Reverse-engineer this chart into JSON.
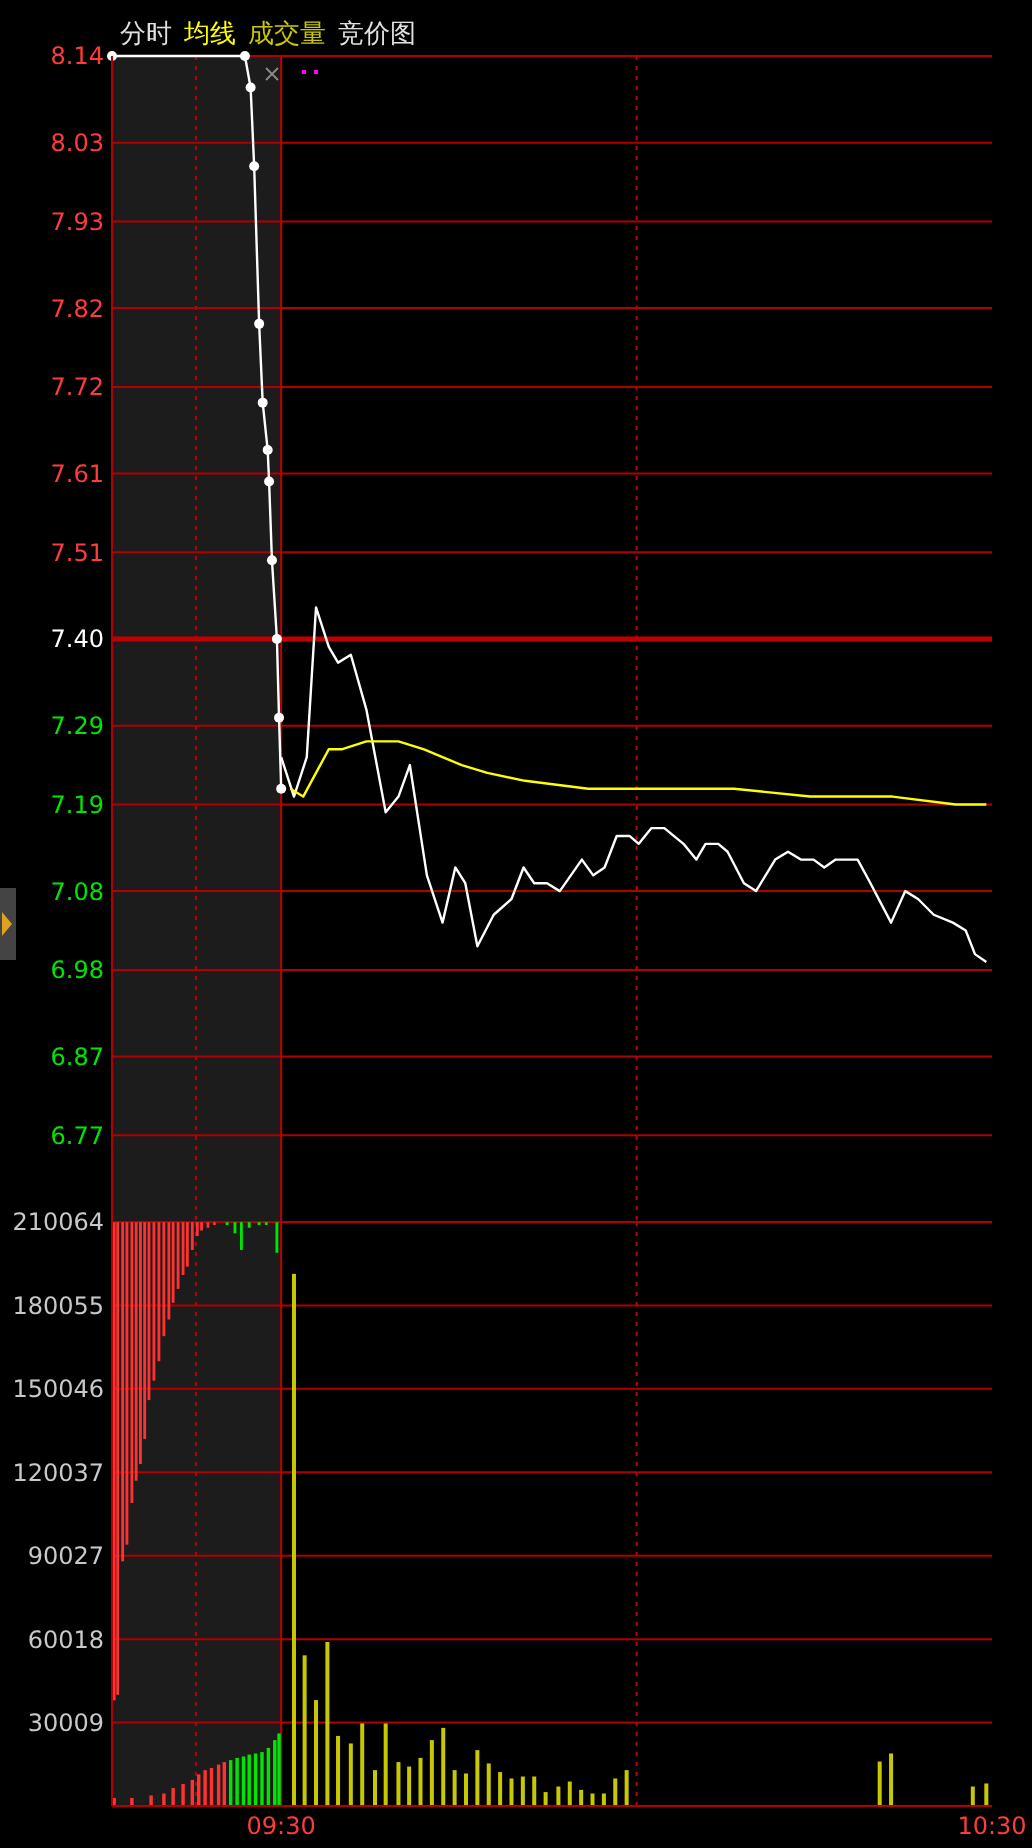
{
  "chart_data": [
    {
      "type": "line",
      "title": "分时",
      "legend": "top left",
      "tick_labels": "y",
      "grid": "y",
      "annotations": [
        "成交量",
        "竞价图"
      ],
      "xlim": [
        9.262,
        10.5
      ],
      "ylim": [
        6.66,
        8.14
      ],
      "yticks": [
        8.14,
        8.03,
        7.93,
        7.82,
        7.72,
        7.61,
        7.51,
        {
          "value": 7.4,
          "label": "7.40"
        },
        7.29,
        7.19,
        7.08,
        6.98,
        6.87,
        6.77
      ],
      "bands": [
        {
          "axis": "x",
          "from": 9.262,
          "to": 9.5,
          "color": "#1c1c1c"
        }
      ],
      "ref_lines": [
        {
          "axis": "y",
          "value": 7.4,
          "color": "#c00000",
          "line_style": "solid"
        },
        {
          "axis": "x",
          "value": 9.38,
          "color": "#c00000",
          "line_style": "dotted"
        },
        {
          "axis": "x",
          "value": 9.5,
          "color": "#c00000",
          "line_style": "solid"
        },
        {
          "axis": "x",
          "value": 10.0,
          "color": "#c00000",
          "line_style": "dotted"
        }
      ],
      "series": [
        {
          "color": "#ffffff",
          "marker": "circle",
          "x": [
            9.262,
            9.449,
            9.457,
            9.462,
            9.469,
            9.474,
            9.481,
            9.483,
            9.487,
            9.494,
            9.497,
            9.5
          ],
          "values": [
            8.14,
            8.14,
            8.1,
            8.0,
            7.8,
            7.7,
            7.64,
            7.6,
            7.5,
            7.4,
            7.3,
            7.21
          ]
        },
        {
          "color": "#ffffff",
          "x": [
            9.5,
            9.518,
            9.536,
            9.549,
            9.567,
            9.58,
            9.598,
            9.62,
            9.647,
            9.665,
            9.681,
            9.705,
            9.727,
            9.745,
            9.759,
            9.776,
            9.799,
            9.824,
            9.841,
            9.856,
            9.874,
            9.892,
            9.923,
            9.939,
            9.955,
            9.972,
            9.99,
            10.003,
            10.021,
            10.039,
            10.066,
            10.084,
            10.097,
            10.115,
            10.128,
            10.151,
            10.168,
            10.195,
            10.213,
            10.231,
            10.249,
            10.264,
            10.28,
            10.311,
            10.329,
            10.358,
            10.378,
            10.396,
            10.418,
            10.445,
            10.463,
            10.476,
            10.492
          ],
          "values": [
            7.25,
            7.2,
            7.25,
            7.44,
            7.39,
            7.37,
            7.38,
            7.31,
            7.18,
            7.2,
            7.24,
            7.1,
            7.04,
            7.11,
            7.09,
            7.01,
            7.05,
            7.07,
            7.11,
            7.09,
            7.09,
            7.08,
            7.12,
            7.1,
            7.11,
            7.15,
            7.15,
            7.14,
            7.16,
            7.16,
            7.14,
            7.12,
            7.14,
            7.14,
            7.13,
            7.09,
            7.08,
            7.12,
            7.13,
            7.12,
            7.12,
            7.11,
            7.12,
            7.12,
            7.09,
            7.04,
            7.08,
            7.07,
            7.05,
            7.04,
            7.03,
            7.0,
            6.99
          ]
        },
        {
          "name": "均线",
          "color": "#ffff00",
          "x": [
            9.513,
            9.531,
            9.549,
            9.567,
            9.585,
            9.62,
            9.638,
            9.665,
            9.701,
            9.727,
            9.754,
            9.79,
            9.843,
            9.932,
            10.021,
            10.137,
            10.244,
            10.342,
            10.36,
            10.449,
            10.492
          ],
          "values": [
            7.21,
            7.2,
            7.23,
            7.26,
            7.26,
            7.27,
            7.27,
            7.27,
            7.26,
            7.25,
            7.24,
            7.23,
            7.22,
            7.21,
            7.21,
            7.21,
            7.2,
            7.2,
            7.2,
            7.19,
            7.19
          ]
        }
      ]
    },
    {
      "type": "bar",
      "grid": "y",
      "xlim": [
        9.262,
        10.5
      ],
      "xticks": [
        {
          "value": 9.5,
          "label": "09:30"
        },
        {
          "value": 10.5,
          "label": "10:30"
        }
      ],
      "ylim": [
        0,
        210064
      ],
      "yticks": [
        30009,
        60018,
        90027,
        120037,
        150046,
        180055,
        210064
      ],
      "bands": [
        {
          "axis": "x",
          "from": 9.262,
          "to": 9.5,
          "color": "#1c1c1c"
        }
      ],
      "ref_lines": [
        {
          "axis": "x",
          "value": 9.38,
          "color": "#c00000",
          "line_style": "dotted"
        },
        {
          "axis": "x",
          "value": 9.5,
          "color": "#c00000",
          "line_style": "solid"
        },
        {
          "axis": "x",
          "value": 10.0,
          "color": "#c00000",
          "line_style": "dotted"
        }
      ],
      "series": [
        {
          "x": [
            9.265,
            9.27,
            9.277,
            9.283,
            9.29,
            9.296,
            9.302,
            9.308,
            9.314,
            9.321,
            9.328,
            9.335,
            9.342,
            9.348,
            9.355,
            9.362,
            9.368,
            9.375,
            9.382,
            9.388,
            9.397,
            9.406,
            9.424,
            9.435,
            9.444,
            9.455,
            9.469,
            9.479,
            9.494
          ],
          "base": [
            38000,
            40000,
            88000,
            94000,
            109000,
            117000,
            123000,
            132000,
            146000,
            153000,
            160000,
            169000,
            175000,
            181000,
            186000,
            191000,
            194000,
            200000,
            205000,
            207000,
            208000,
            209000,
            209000,
            206000,
            200000,
            208000,
            209000,
            209000,
            199000
          ],
          "values": [
            172000,
            170000,
            122000,
            116000,
            101000,
            93000,
            87000,
            78000,
            64000,
            57000,
            50000,
            41000,
            35000,
            29000,
            24000,
            19000,
            16000,
            10000,
            5000,
            3000,
            2000,
            1000,
            1000,
            4000,
            10000,
            2000,
            1000,
            1000,
            11000
          ],
          "colors": [
            "#ff3232",
            "#ff3232",
            "#ff3232",
            "#ff3232",
            "#ff3232",
            "#ff3232",
            "#ff3232",
            "#ff3232",
            "#ff3232",
            "#ff3232",
            "#ff3232",
            "#ff3232",
            "#ff3232",
            "#ff3232",
            "#ff3232",
            "#ff3232",
            "#ff3232",
            "#ff3232",
            "#ff3232",
            "#ff3232",
            "#ff3232",
            "#ff3232",
            "#00e600",
            "#00e600",
            "#00e600",
            "#00e600",
            "#00e600",
            "#00e600",
            "#00e600"
          ]
        },
        {
          "x": [
            9.265,
            9.29,
            9.317,
            9.335,
            9.348,
            9.362,
            9.375,
            9.384,
            9.393,
            9.402,
            9.412,
            9.42,
            9.429,
            9.438,
            9.447,
            9.455,
            9.464,
            9.473,
            9.482,
            9.491,
            9.497
          ],
          "values": [
            2900,
            2900,
            3800,
            4500,
            6500,
            7900,
            9400,
            11400,
            12900,
            13700,
            14900,
            15800,
            16500,
            17300,
            17800,
            18500,
            18900,
            19400,
            20900,
            23700,
            26100
          ],
          "colors": [
            "#ff3232",
            "#ff3232",
            "#ff3232",
            "#ff3232",
            "#ff3232",
            "#ff3232",
            "#ff3232",
            "#ff3232",
            "#ff3232",
            "#ff3232",
            "#ff3232",
            "#ff3232",
            "#00e600",
            "#00e600",
            "#00e600",
            "#00e600",
            "#00e600",
            "#00e600",
            "#00e600",
            "#00e600",
            "#00e600"
          ]
        },
        {
          "color": "#c8c800",
          "x": [
            9.518,
            9.533,
            9.549,
            9.565,
            9.58,
            9.598,
            9.614,
            9.632,
            9.647,
            9.665,
            9.68,
            9.696,
            9.712,
            9.728,
            9.744,
            9.76,
            9.776,
            9.792,
            9.808,
            9.824,
            9.84,
            9.856,
            9.872,
            9.89,
            9.906,
            9.922,
            9.938,
            9.954,
            9.97,
            9.986,
            10.342,
            10.358,
            10.473,
            10.492
          ],
          "values": [
            191400,
            54200,
            38100,
            59000,
            25200,
            22500,
            29700,
            12900,
            29700,
            15800,
            14200,
            17300,
            23700,
            28100,
            12900,
            11700,
            20100,
            15300,
            12200,
            9900,
            10600,
            10600,
            5000,
            7000,
            8800,
            5800,
            4500,
            4500,
            9900,
            12900,
            16000,
            18900,
            7000,
            8100
          ]
        }
      ]
    }
  ]
}
